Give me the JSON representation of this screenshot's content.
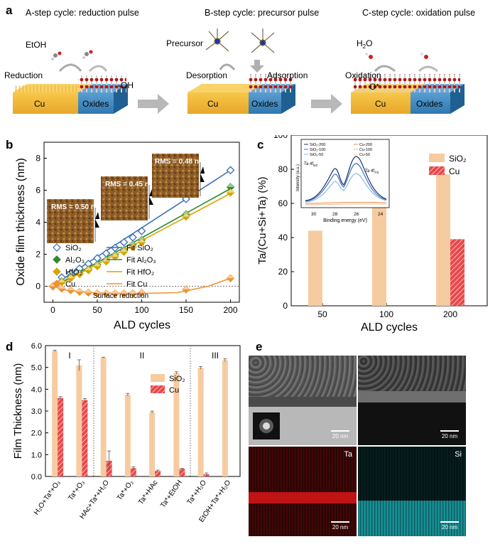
{
  "panel_a": {
    "label": "a",
    "step_a_title": "A-step cycle: reduction pulse",
    "step_b_title": "B-step cycle: precursor pulse",
    "step_c_title": "C-step cycle: oxidation pulse",
    "etoh": "EtOH",
    "reduction": "Reduction",
    "oh": "-OH",
    "precursor": "Precursor",
    "desorption": "Desorption",
    "adsorption": "Adsorption",
    "h2o_main": "H",
    "h2o_sub": "2",
    "h2o_end": "O",
    "oxidation": "Oxidation",
    "ostar": "O*",
    "cu": "Cu",
    "oxides": "Oxides"
  },
  "panel_b": {
    "label": "b",
    "rms1": "RMS = 0.50 nm",
    "rms2": "RMS = 0.45 nm",
    "rms3": "RMS = 0.48 nm",
    "surface_reduction": "Surface reduction",
    "legend": [
      {
        "name": "SiO₂",
        "color": "#3b6db5"
      },
      {
        "name": "Al₂O₃",
        "color": "#2e8b2e"
      },
      {
        "name": "HfO₂",
        "color": "#d9a400"
      },
      {
        "name": "Cu",
        "color": "#f0912e"
      }
    ],
    "fit_legend": [
      "Fit SiO₂",
      "Fit Al₂O₃",
      "Fit HfO₂",
      "Fit Cu"
    ]
  },
  "panel_c": {
    "label": "c",
    "legend": [
      "SiO₂",
      "Cu"
    ],
    "inset_legend": [
      "SiO₂-200",
      "SiO₂-100",
      "SiO₂-50",
      "Cu-200",
      "Cu-100",
      "Cu-50"
    ],
    "inset_ylabel": "Intensity (a.u.)",
    "inset_xlabel": "Binding energy (eV)",
    "inset_xticks": [
      "30",
      "28",
      "26",
      "24"
    ],
    "ta_4f52": "Ta 4f",
    "ta_4f52_sub": "5/2",
    "ta_4f72": "Ta 4f",
    "ta_4f72_sub": "7/2"
  },
  "panel_d": {
    "label": "d",
    "roman": [
      "I",
      "II",
      "III"
    ],
    "legend": [
      "SiO₂",
      "Cu"
    ]
  },
  "panel_e": {
    "label": "e",
    "scale": "20 nm",
    "ta": "Ta",
    "si": "Si"
  },
  "chart_data": [
    {
      "type": "scatter",
      "panel": "b",
      "xlabel": "ALD cycles",
      "ylabel": "Oxide film thickness (nm)",
      "xlim": [
        -10,
        210
      ],
      "ylim": [
        -1,
        9
      ],
      "xticks": [
        0,
        50,
        100,
        150,
        200
      ],
      "yticks": [
        0,
        2,
        4,
        6,
        8
      ],
      "legend_position": "lower-left",
      "series": [
        {
          "name": "SiO₂",
          "color": "#3b6db5",
          "x": [
            0,
            10,
            20,
            30,
            40,
            50,
            60,
            70,
            80,
            90,
            100,
            150,
            200
          ],
          "y": [
            0,
            0.55,
            0.8,
            1.1,
            1.4,
            1.75,
            2.05,
            2.4,
            2.75,
            3.05,
            3.45,
            5.45,
            7.25
          ],
          "fit": [
            [
              0,
              0.05
            ],
            [
              200,
              7.25
            ]
          ]
        },
        {
          "name": "Al₂O₃",
          "color": "#2e8b2e",
          "x": [
            0,
            10,
            20,
            30,
            40,
            50,
            60,
            70,
            80,
            90,
            100,
            150,
            200
          ],
          "y": [
            0,
            0.3,
            0.55,
            0.8,
            1.05,
            1.35,
            1.65,
            1.95,
            2.25,
            2.6,
            2.9,
            4.5,
            6.2
          ],
          "fit": [
            [
              0,
              -0.05
            ],
            [
              200,
              6.1
            ]
          ]
        },
        {
          "name": "HfO₂",
          "color": "#d9a400",
          "x": [
            0,
            10,
            20,
            30,
            40,
            50,
            60,
            70,
            80,
            90,
            100,
            150,
            200
          ],
          "y": [
            0,
            0.25,
            0.5,
            0.75,
            1.0,
            1.25,
            1.55,
            1.85,
            2.15,
            2.45,
            2.75,
            4.35,
            5.85
          ],
          "fit": [
            [
              0,
              -0.1
            ],
            [
              200,
              5.8
            ]
          ]
        },
        {
          "name": "Cu",
          "color": "#f0912e",
          "x": [
            0,
            10,
            20,
            30,
            40,
            50,
            60,
            70,
            80,
            90,
            100,
            150,
            200
          ],
          "y": [
            0,
            -0.15,
            -0.25,
            -0.35,
            -0.4,
            -0.45,
            -0.45,
            -0.45,
            -0.45,
            -0.45,
            -0.4,
            -0.2,
            0.5
          ],
          "fit": [
            [
              0,
              0
            ],
            [
              15,
              -0.25
            ],
            [
              50,
              -0.42
            ],
            [
              100,
              -0.45
            ],
            [
              140,
              -0.4
            ],
            [
              175,
              0
            ],
            [
              200,
              0.5
            ]
          ]
        }
      ]
    },
    {
      "type": "bar",
      "panel": "c",
      "xlabel": "ALD cycles",
      "ylabel": "Ta/(Cu+Si+Ta) (%)",
      "categories": [
        "50",
        "100",
        "200"
      ],
      "ylim": [
        0,
        100
      ],
      "yticks": [
        0,
        20,
        40,
        60,
        80,
        100
      ],
      "legend_position": "top-right",
      "series": [
        {
          "name": "SiO₂",
          "values": [
            44,
            58.5,
            77
          ],
          "color": "#f7cba0"
        },
        {
          "name": "Cu",
          "values": [
            0,
            0,
            39
          ],
          "color": "#e8494b"
        }
      ]
    },
    {
      "type": "bar",
      "panel": "d",
      "ylabel": "Film Thickness (nm)",
      "categories": [
        "H₂O+Ta*+O₃",
        "Ta*+O₃",
        "HAc+Ta*+H₂O",
        "Ta*+O₂",
        "Ta*+HAc",
        "Ta*+EtOH",
        "Ta*+H₂O",
        "EtOH+Ta*+H₂O"
      ],
      "ylim": [
        0,
        6.0
      ],
      "yticks": [
        0.0,
        1.0,
        2.0,
        3.0,
        4.0,
        5.0,
        6.0
      ],
      "legend_position": "top-right",
      "series": [
        {
          "name": "SiO₂",
          "values": [
            5.75,
            5.1,
            5.45,
            3.75,
            2.95,
            4.75,
            4.98,
            5.33
          ],
          "err": [
            0.04,
            0.25,
            0.02,
            0.06,
            0.05,
            0.05,
            0.06,
            0.07
          ],
          "color": "#f7cba0"
        },
        {
          "name": "Cu",
          "values": [
            3.6,
            3.5,
            0.72,
            0.38,
            0.25,
            0.35,
            0.1,
            0
          ],
          "err": [
            0.06,
            0.07,
            0.45,
            0.06,
            0.04,
            0.02,
            0.06,
            0
          ],
          "color": "#e8494b"
        }
      ]
    }
  ]
}
